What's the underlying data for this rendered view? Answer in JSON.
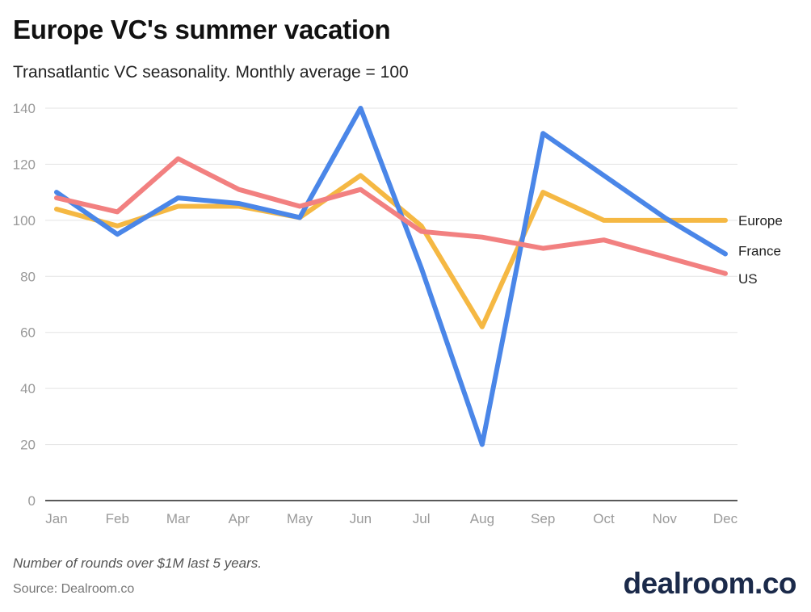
{
  "header": {
    "title": "Europe VC's summer vacation",
    "subtitle": "Transatlantic VC seasonality. Monthly average = 100"
  },
  "footer": {
    "note": "Number of rounds over $1M last 5 years.",
    "source": "Source: Dealroom.co",
    "logo": "dealroom.co"
  },
  "chart_data": {
    "type": "line",
    "title": "Europe VC's summer vacation",
    "subtitle": "Transatlantic VC seasonality. Monthly average = 100",
    "xlabel": "",
    "ylabel": "",
    "categories": [
      "Jan",
      "Feb",
      "Mar",
      "Apr",
      "May",
      "Jun",
      "Jul",
      "Aug",
      "Sep",
      "Oct",
      "Nov",
      "Dec"
    ],
    "ylim": [
      0,
      140
    ],
    "yticks": [
      0,
      20,
      40,
      60,
      80,
      100,
      120,
      140
    ],
    "grid": true,
    "legend": "direct labels at right end of lines",
    "series": [
      {
        "name": "Europe",
        "color": "#f5b843",
        "values": [
          104,
          98,
          105,
          105,
          101,
          116,
          98,
          62,
          110,
          100,
          100,
          100
        ]
      },
      {
        "name": "France",
        "color": "#4a86e8",
        "values": [
          110,
          95,
          108,
          106,
          101,
          140,
          83,
          20,
          131,
          116,
          101,
          88
        ]
      },
      {
        "name": "US",
        "color": "#f28080",
        "values": [
          108,
          103,
          122,
          111,
          105,
          111,
          96,
          94,
          90,
          93,
          87,
          81
        ]
      }
    ]
  }
}
